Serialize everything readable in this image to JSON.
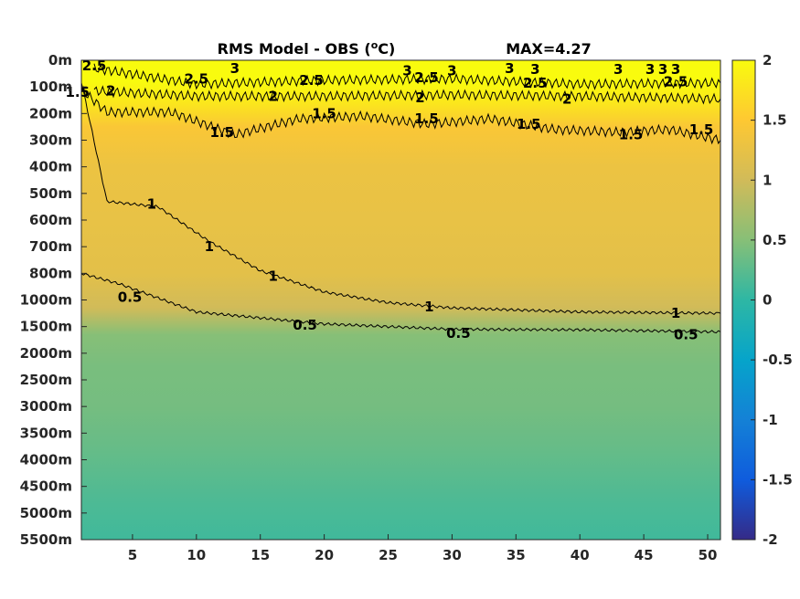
{
  "chart_data": {
    "type": "heatmap",
    "title_left": "RMS Model - OBS (",
    "title_unit_sup": "o",
    "title_unit_after": "C)",
    "title_right": "MAX=4.27",
    "xlabel": "",
    "ylabel": "",
    "xlim": [
      1,
      51
    ],
    "x_ticks": [
      "5",
      "10",
      "15",
      "20",
      "25",
      "30",
      "35",
      "40",
      "45",
      "50"
    ],
    "y_ticks": [
      "0m",
      "100m",
      "200m",
      "300m",
      "400m",
      "500m",
      "600m",
      "700m",
      "800m",
      "1000m",
      "1500m",
      "2000m",
      "2500m",
      "3000m",
      "3500m",
      "4000m",
      "4500m",
      "5000m",
      "5500m"
    ],
    "colorbar": {
      "clim": [
        -2,
        2
      ],
      "colormap": "parula",
      "ticks": [
        "2",
        "1.5",
        "1",
        "0.5",
        "0",
        "-0.5",
        "-1",
        "-1.5",
        "-2"
      ]
    },
    "contour_levels": [
      {
        "level": 0.5,
        "depth_index": [
          [
            1,
            8
          ],
          [
            4,
            8.4
          ],
          [
            10,
            9.45
          ],
          [
            20,
            9.9
          ],
          [
            30,
            10.1
          ],
          [
            40,
            10.12
          ],
          [
            51,
            10.2
          ]
        ],
        "labels": [
          {
            "text": "0.5",
            "x": 4.8,
            "d": 8.9
          },
          {
            "text": "0.5",
            "x": 18.5,
            "d": 9.95
          },
          {
            "text": "0.5",
            "x": 30.5,
            "d": 10.25
          },
          {
            "text": "0.5",
            "x": 48.3,
            "d": 10.3
          }
        ]
      },
      {
        "level": 1,
        "depth_index": [
          [
            1,
            0.8
          ],
          [
            3,
            5.3
          ],
          [
            7,
            5.5
          ],
          [
            11,
            6.8
          ],
          [
            15,
            7.9
          ],
          [
            20,
            8.7
          ],
          [
            25,
            9.1
          ],
          [
            30,
            9.3
          ],
          [
            40,
            9.45
          ],
          [
            51,
            9.5
          ]
        ],
        "labels": [
          {
            "text": "1",
            "x": 6.5,
            "d": 5.4
          },
          {
            "text": "1",
            "x": 11,
            "d": 7
          },
          {
            "text": "1",
            "x": 16,
            "d": 8.1
          },
          {
            "text": "1",
            "x": 28.2,
            "d": 9.25
          },
          {
            "text": "1",
            "x": 47.5,
            "d": 9.5
          }
        ]
      },
      {
        "level": 1.5,
        "depth_index": [
          [
            1,
            1.1
          ],
          [
            3,
            1.95
          ],
          [
            8,
            1.95
          ],
          [
            13,
            2.8
          ],
          [
            18,
            2.2
          ],
          [
            23,
            2.1
          ],
          [
            28,
            2.4
          ],
          [
            33,
            2.2
          ],
          [
            38,
            2.6
          ],
          [
            43,
            2.7
          ],
          [
            47,
            2.6
          ],
          [
            51,
            3.0
          ]
        ],
        "labels": [
          {
            "text": "1.5",
            "x": 0.7,
            "d": 1.2
          },
          {
            "text": "1.5",
            "x": 12,
            "d": 2.7
          },
          {
            "text": "1.5",
            "x": 20,
            "d": 2.0
          },
          {
            "text": "1.5",
            "x": 28,
            "d": 2.2
          },
          {
            "text": "1.5",
            "x": 36,
            "d": 2.4
          },
          {
            "text": "1.5",
            "x": 44,
            "d": 2.8
          },
          {
            "text": "1.5",
            "x": 49.5,
            "d": 2.6
          }
        ]
      },
      {
        "level": 2,
        "depth_index": [
          [
            2,
            1.15
          ],
          [
            10,
            1.35
          ],
          [
            20,
            1.35
          ],
          [
            30,
            1.3
          ],
          [
            40,
            1.35
          ],
          [
            51,
            1.45
          ]
        ],
        "labels": [
          {
            "text": "2",
            "x": 3.3,
            "d": 1.15
          },
          {
            "text": "2",
            "x": 16,
            "d": 1.35
          },
          {
            "text": "2",
            "x": 27.5,
            "d": 1.4
          },
          {
            "text": "2",
            "x": 39,
            "d": 1.45
          }
        ]
      },
      {
        "level": 2.5,
        "depth_index": [
          [
            2,
            0.3
          ],
          [
            10,
            0.9
          ],
          [
            20,
            0.75
          ],
          [
            30,
            0.7
          ],
          [
            40,
            0.9
          ],
          [
            51,
            0.85
          ]
        ],
        "labels": [
          {
            "text": "2.5",
            "x": 2,
            "d": 0.2
          },
          {
            "text": "2.5",
            "x": 10,
            "d": 0.7
          },
          {
            "text": "2.5",
            "x": 19,
            "d": 0.75
          },
          {
            "text": "2.5",
            "x": 28,
            "d": 0.65
          },
          {
            "text": "2.5",
            "x": 36.5,
            "d": 0.85
          },
          {
            "text": "2.5",
            "x": 47.5,
            "d": 0.8
          }
        ]
      },
      {
        "level": 3,
        "labels": [
          {
            "text": "3",
            "x": 13,
            "d": 0.3
          },
          {
            "text": "3",
            "x": 30,
            "d": 0.4
          },
          {
            "text": "3",
            "x": 26.5,
            "d": 0.4
          },
          {
            "text": "3",
            "x": 34.5,
            "d": 0.3
          },
          {
            "text": "3",
            "x": 36.5,
            "d": 0.35
          },
          {
            "text": "3",
            "x": 43,
            "d": 0.35
          },
          {
            "text": "3",
            "x": 45.5,
            "d": 0.35
          },
          {
            "text": "3",
            "x": 46.5,
            "d": 0.35
          },
          {
            "text": "3",
            "x": 47.5,
            "d": 0.35
          }
        ]
      }
    ],
    "field_profile": [
      {
        "d": 0,
        "v": 2.0
      },
      {
        "d": 0.8,
        "v": 2.0
      },
      {
        "d": 1.6,
        "v": 1.8
      },
      {
        "d": 2.5,
        "v": 1.45
      },
      {
        "d": 4,
        "v": 1.3
      },
      {
        "d": 6,
        "v": 1.25
      },
      {
        "d": 8,
        "v": 1.2
      },
      {
        "d": 9.3,
        "v": 1.0
      },
      {
        "d": 10.3,
        "v": 0.5
      },
      {
        "d": 11.5,
        "v": 0.42
      },
      {
        "d": 13,
        "v": 0.4
      },
      {
        "d": 14.5,
        "v": 0.32
      },
      {
        "d": 16.5,
        "v": 0.18
      },
      {
        "d": 18,
        "v": 0.1
      }
    ]
  }
}
